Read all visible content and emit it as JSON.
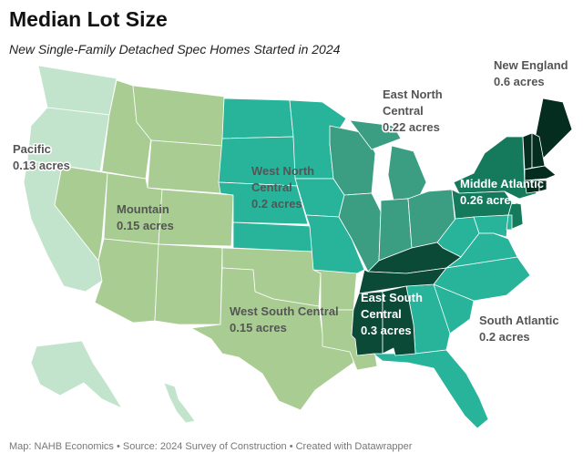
{
  "header": {
    "title": "Median Lot Size",
    "subtitle": "New Single-Family Detached Spec Homes Started in 2024"
  },
  "footer": {
    "text": "Map: NAHB Economics • Source: 2024 Survey of Construction • Created with Datawrapper"
  },
  "colors": {
    "pacific": "#c3e4cc",
    "mountain": "#a9cc93",
    "west_south_central": "#a9cc93",
    "west_north_central": "#27b49b",
    "east_north_central": "#3b9e82",
    "south_atlantic": "#27b49b",
    "middle_atlantic": "#157a5b",
    "east_south_central": "#0b4a37",
    "new_england": "#052d1f"
  },
  "regions": [
    {
      "id": "pacific",
      "name": "Pacific",
      "value": "0.13 acres"
    },
    {
      "id": "mountain",
      "name": "Mountain",
      "value": "0.15 acres"
    },
    {
      "id": "west_north_central",
      "name_line1": "West North",
      "name_line2": "Central",
      "value": "0.2 acres"
    },
    {
      "id": "east_north_central",
      "name_line1": "East North",
      "name_line2": "Central",
      "value": "0.22 acres"
    },
    {
      "id": "new_england",
      "name": "New England",
      "value": "0.6 acres"
    },
    {
      "id": "middle_atlantic",
      "name": "Middle Atlantic",
      "value": "0.26 acres"
    },
    {
      "id": "west_south_central",
      "name": "West South Central",
      "value": "0.15 acres"
    },
    {
      "id": "east_south_central",
      "name_line1": "East South",
      "name_line2": "Central",
      "value": "0.3 acres"
    },
    {
      "id": "south_atlantic",
      "name": "South Atlantic",
      "value": "0.2 acres"
    }
  ]
}
